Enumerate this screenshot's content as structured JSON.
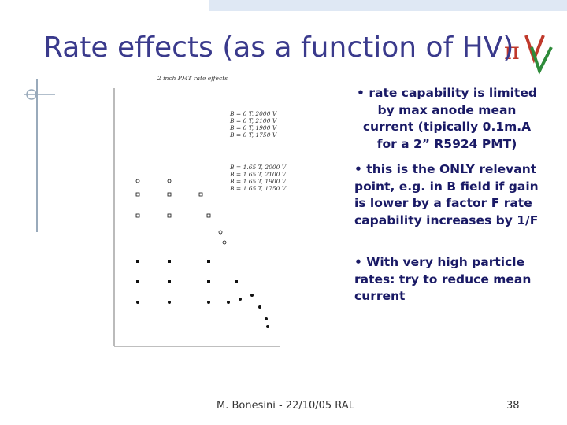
{
  "slide": {
    "title": "Rate effects (as a function of HV)",
    "figure": {
      "title": "2 inch PMT  rate effects",
      "legend_top": [
        "B = 0 T, 2000 V",
        "B = 0 T, 2100 V",
        "B = 0 T, 1900 V",
        "B = 0 T, 1750 V"
      ],
      "legend_bottom": [
        "B = 1.65 T, 2000 V",
        "B = 1.65 T, 2100 V",
        "B = 1.65 T, 1900 V",
        "B = 1.65 T, 1750 V"
      ]
    },
    "bullets": [
      "• rate capability is limited by max anode  mean current (tipically 0.1m.A for a 2” R5924 PMT)",
      "• this is the ONLY relevant point, e.g. in B field if gain is lower  by a factor F rate capability increases by 1/F",
      "• With very high particle rates: try to reduce mean current"
    ],
    "footer": {
      "author": "M. Bonesini - 22/10/05 RAL",
      "page": "38"
    }
  }
}
